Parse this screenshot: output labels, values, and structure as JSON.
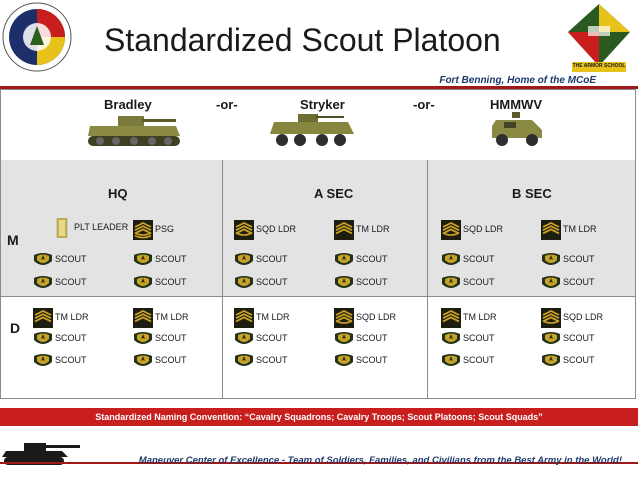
{
  "header": {
    "title": "Standardized Scout Platoon",
    "subtitle": "Fort Benning, Home of the MCoE",
    "logo_left_text": "MANEUVER CENTER FORT BENNING",
    "logo_right_text": "THE ARMOR SCHOOL"
  },
  "vehicles": {
    "bradley": "Bradley",
    "or1": "-or-",
    "stryker": "Stryker",
    "or2": "-or-",
    "hmmwv": "HMMWV"
  },
  "sections": {
    "hq": "HQ",
    "a_sec": "A SEC",
    "b_sec": "B SEC"
  },
  "rows": {
    "m": "M",
    "d": "D"
  },
  "slots": [
    "PLT LEADER",
    "PSG",
    "SCOUT",
    "SCOUT",
    "SCOUT",
    "SCOUT",
    "SQD LDR",
    "TM LDR",
    "SCOUT",
    "SCOUT",
    "SCOUT",
    "SCOUT",
    "SQD LDR",
    "TM LDR",
    "SCOUT",
    "SCOUT",
    "SCOUT",
    "SCOUT",
    "TM LDR",
    "TM LDR",
    "SCOUT",
    "SCOUT",
    "SCOUT",
    "SCOUT",
    "TM LDR",
    "SQD LDR",
    "SCOUT",
    "SCOUT",
    "SCOUT",
    "SCOUT",
    "TM LDR",
    "SQD LDR",
    "SCOUT",
    "SCOUT",
    "SCOUT",
    "SCOUT"
  ],
  "footer": {
    "naming": "Standardized Naming Convention: “Cavalry Squadrons; Cavalry Troops; Scout Platoons; Scout Squads”",
    "mcoe": "Maneuver Center of Excellence - Team of Soldiers, Families, and Civilians from the Best Army in the World!"
  },
  "colors": {
    "banner": "#c81e1e",
    "rule": "#a01818",
    "footer_text": "#1f3a6b",
    "band": "#e3e3e3"
  }
}
